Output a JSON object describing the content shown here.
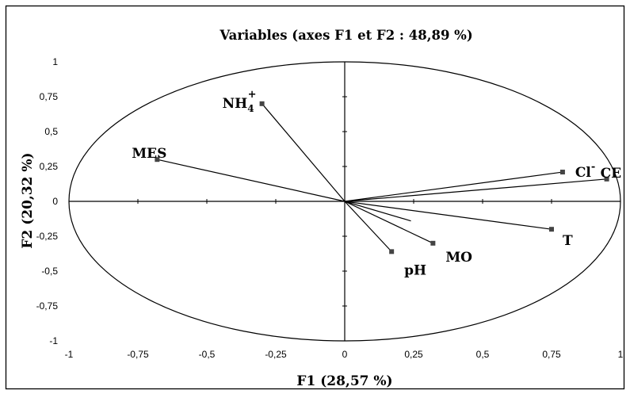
{
  "chart_data": {
    "type": "scatter",
    "subtype": "pca-correlation-circle",
    "title": "Variables (axes F1 et F2 : 48,89 %)",
    "xlabel": "F1 (28,57 %)",
    "ylabel": "F2 (20,32 %)",
    "xlim": [
      -1,
      1
    ],
    "ylim": [
      -1,
      1
    ],
    "x_ticks": [
      "-1",
      "-0,75",
      "-0,5",
      "-0,25",
      "0",
      "0,25",
      "0,5",
      "0,75",
      "1"
    ],
    "y_ticks": [
      "1",
      "0,75",
      "0,5",
      "0,25",
      "0",
      "-0,25",
      "-0,5",
      "-0,75",
      "-1"
    ],
    "grid": false,
    "points": [
      {
        "label": "NH4",
        "sup": "+",
        "sub": "4",
        "base": "NH",
        "x": -0.3,
        "y": 0.7
      },
      {
        "label": "MES",
        "x": -0.68,
        "y": 0.3
      },
      {
        "label": "Cl",
        "sup": "-",
        "base": "Cl",
        "x": 0.79,
        "y": 0.21
      },
      {
        "label": "CE",
        "x": 0.95,
        "y": 0.16
      },
      {
        "label": "T",
        "x": 0.75,
        "y": -0.2
      },
      {
        "label": "MO",
        "x": 0.32,
        "y": -0.3
      },
      {
        "label": "pH",
        "x": 0.17,
        "y": -0.36
      },
      {
        "label": "",
        "x": 0.24,
        "y": -0.14
      }
    ]
  }
}
